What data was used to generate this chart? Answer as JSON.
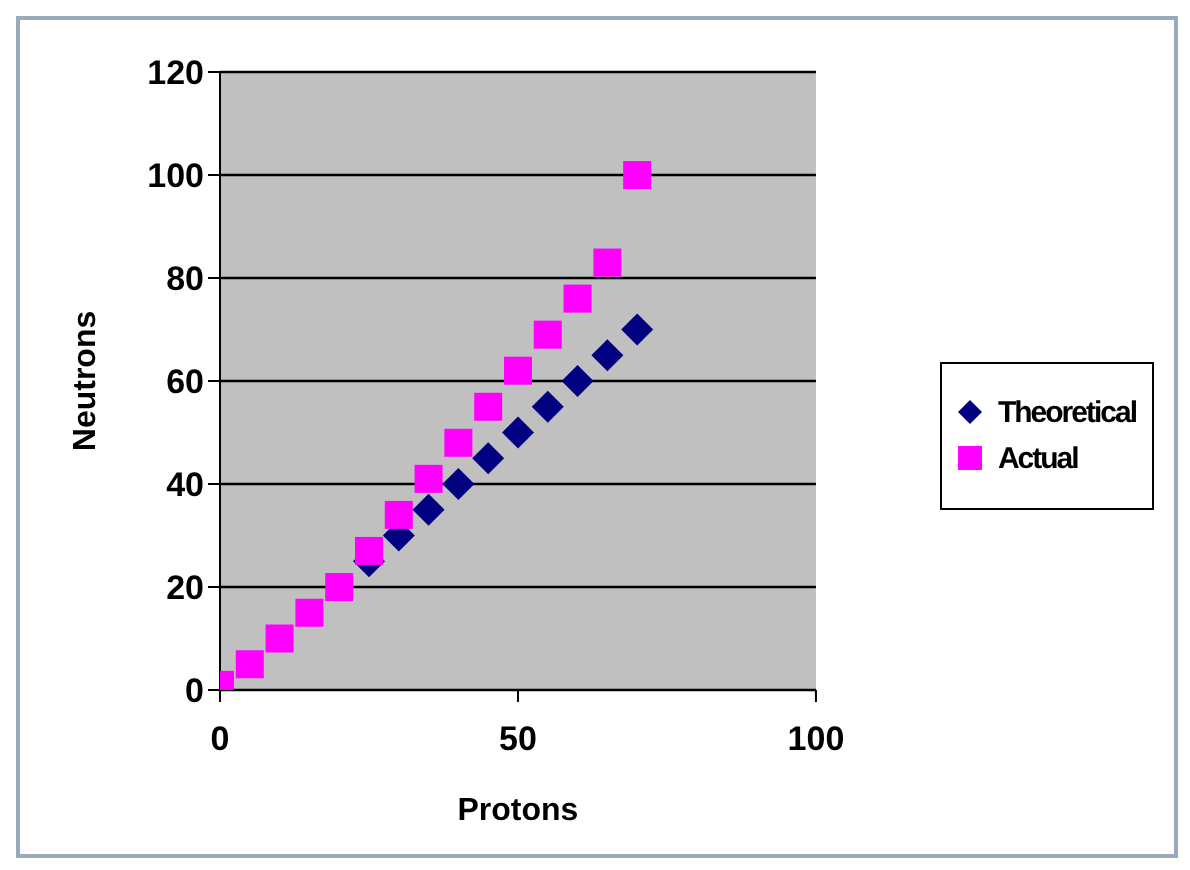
{
  "chart_data": {
    "type": "scatter",
    "xlabel": "Protons",
    "ylabel": "Neutrons",
    "xlim": [
      0,
      100
    ],
    "xticks": [
      0,
      50,
      100
    ],
    "ylim": [
      0,
      120
    ],
    "yticks": [
      0,
      20,
      40,
      60,
      80,
      100,
      120
    ],
    "grid": "y",
    "legend": "right",
    "x": [
      0,
      5,
      10,
      15,
      20,
      25,
      30,
      35,
      40,
      45,
      50,
      55,
      60,
      65,
      70
    ],
    "series": [
      {
        "name": "Theoretical",
        "color": "#000080",
        "marker": "diamond",
        "values": [
          null,
          null,
          null,
          null,
          null,
          25,
          30,
          35,
          40,
          45,
          50,
          55,
          60,
          65,
          70
        ]
      },
      {
        "name": "Actual",
        "color": "#ff00ff",
        "marker": "square",
        "values": [
          1,
          5,
          10,
          15,
          20,
          27,
          34,
          41,
          48,
          55,
          62,
          69,
          76,
          83,
          100
        ]
      }
    ]
  }
}
